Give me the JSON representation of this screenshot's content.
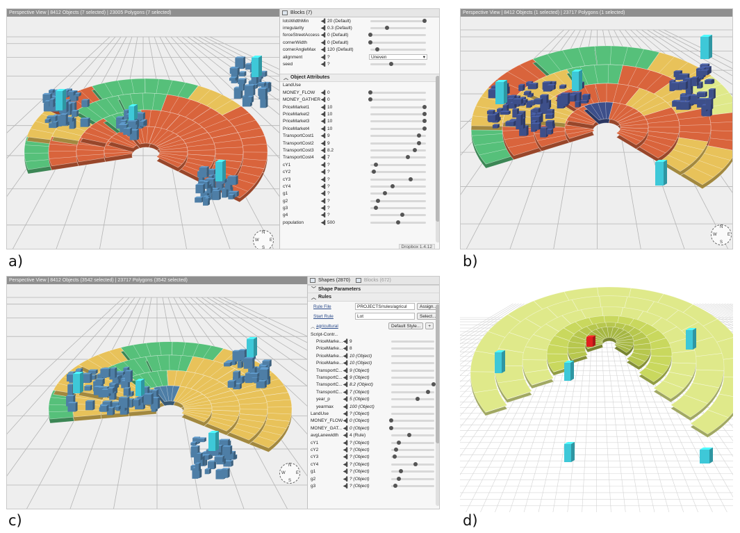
{
  "captions": {
    "a": "a)",
    "b": "b)",
    "c": "c)",
    "d": "d)"
  },
  "panel_a": {
    "viewport_title": "Perspective View  |  8412 Objects  (7 selected)  |  23005 Polygons  (7 selected)",
    "tab_label": "Blocks (7)",
    "top_rows": [
      {
        "name": "lotsWidthMin",
        "value": "20 (Default)",
        "slider": 0.98
      },
      {
        "name": "irregularity",
        "value": "0.3 (Default)",
        "slider": 0.3
      },
      {
        "name": "forceStreetAccess",
        "value": "0 (Default)",
        "slider": 0.0
      },
      {
        "name": "cornerWidth",
        "value": "0 (Default)",
        "slider": 0.0
      },
      {
        "name": "cornerAngleMax",
        "value": "120 (Default)",
        "slider": 0.12
      }
    ],
    "alignment": {
      "name": "alignment",
      "value": "?",
      "option": "Uneven",
      "arrow": "▾"
    },
    "seed": {
      "name": "seed",
      "value": "?",
      "slider": 0.38
    },
    "section_title": "Object Attributes",
    "attr_rows": [
      {
        "name": "LandUse",
        "value": "",
        "slider": null
      },
      {
        "name": "MONEY_FLOW",
        "value": "0",
        "slider": 0.0
      },
      {
        "name": "MONEY_GATHER",
        "value": "0",
        "slider": 0.0
      },
      {
        "name": "PriceMarket1",
        "value": "10",
        "slider": 0.98
      },
      {
        "name": "PriceMarket2",
        "value": "10",
        "slider": 0.98
      },
      {
        "name": "PriceMarket3",
        "value": "10",
        "slider": 0.98
      },
      {
        "name": "PriceMarket4",
        "value": "10",
        "slider": 0.98
      },
      {
        "name": "TransportCost1",
        "value": "9",
        "slider": 0.88
      },
      {
        "name": "TransportCost2",
        "value": "9",
        "slider": 0.88
      },
      {
        "name": "TransportCost3",
        "value": "8.2",
        "slider": 0.8
      },
      {
        "name": "TransportCost4",
        "value": "7",
        "slider": 0.68
      },
      {
        "name": "cY1",
        "value": "?",
        "slider": 0.1
      },
      {
        "name": "cY2",
        "value": "?",
        "slider": 0.06
      },
      {
        "name": "cY3",
        "value": "?",
        "slider": 0.72
      },
      {
        "name": "cY4",
        "value": "?",
        "slider": 0.4
      },
      {
        "name": "g1",
        "value": "?",
        "slider": 0.26
      },
      {
        "name": "g2",
        "value": "?",
        "slider": 0.14
      },
      {
        "name": "g3",
        "value": "?",
        "slider": 0.1
      },
      {
        "name": "g4",
        "value": "?",
        "slider": 0.58
      },
      {
        "name": "population",
        "value": "500",
        "slider": 0.5
      }
    ],
    "status_tag": "Dropbox 1.4.12"
  },
  "panel_b": {
    "viewport_title": "Perspective View  |  8412 Objects  (1 selected)  |  23717 Polygons  (1 selected)"
  },
  "panel_c": {
    "viewport_title": "Perspective View  |  8412 Objects  (3542 selected)  |  23717 Polygons  (3542 selected)",
    "tab_shapes": "Shapes (2870)",
    "tab_blocks": "Blocks (672)",
    "shape_params": "Shape Parameters",
    "rules_title": "Rules",
    "rule_file_label": "Rule File",
    "rule_file_value": "PROJECTS/rules/agricul",
    "assign_label": "Assign...",
    "start_rule_label": "Start Rule",
    "start_rule_value": "Lot",
    "select_label": "Select...",
    "group_name": "agricultural",
    "default_style_label": "Default Style...",
    "plus_label": "+",
    "script_label": "Script-Contr...",
    "script_rows": [
      {
        "name": "PriceMarke...",
        "value": "9",
        "slider": null,
        "italic": false
      },
      {
        "name": "PriceMarke...",
        "value": "8",
        "slider": null,
        "italic": false
      },
      {
        "name": "PriceMarke...",
        "value": "10 (Object)",
        "slider": null,
        "italic": true
      },
      {
        "name": "PriceMarke...",
        "value": "10 (Object)",
        "slider": null,
        "italic": true
      },
      {
        "name": "TransportC...",
        "value": "9 (Object)",
        "slider": null,
        "italic": true
      },
      {
        "name": "TransportC...",
        "value": "9 (Object)",
        "slider": null,
        "italic": true
      },
      {
        "name": "TransportC...",
        "value": "8.2 (Object)",
        "slider": 0.98,
        "italic": true
      },
      {
        "name": "TransportC...",
        "value": "7 (Object)",
        "slider": 0.86,
        "italic": true
      },
      {
        "name": "year_p",
        "value": "5 (Object)",
        "slider": 0.62,
        "italic": true
      },
      {
        "name": "yearmax",
        "value": "100 (Object)",
        "slider": null,
        "italic": true
      }
    ],
    "attr_rows": [
      {
        "name": "LandUse",
        "value": "? (Object)",
        "slider": null,
        "italic": true
      },
      {
        "name": "MONEY_FLOW",
        "value": "0 (Object)",
        "slider": 0.0,
        "italic": true
      },
      {
        "name": "MONEY_GAT...",
        "value": "0 (Object)",
        "slider": 0.0,
        "italic": true
      },
      {
        "name": "avgLanewidth",
        "value": "4 (Rule)",
        "slider": 0.42,
        "italic": false
      },
      {
        "name": "cY1",
        "value": "? (Object)",
        "slider": 0.18,
        "italic": true
      },
      {
        "name": "cY2",
        "value": "? (Object)",
        "slider": 0.12,
        "italic": true
      },
      {
        "name": "cY3",
        "value": "? (Object)",
        "slider": 0.08,
        "italic": true
      },
      {
        "name": "cY4",
        "value": "? (Object)",
        "slider": 0.56,
        "italic": true
      },
      {
        "name": "g1",
        "value": "? (Object)",
        "slider": 0.22,
        "italic": true
      },
      {
        "name": "g2",
        "value": "? (Object)",
        "slider": 0.18,
        "italic": true
      },
      {
        "name": "g3",
        "value": "? (Object)",
        "slider": 0.1,
        "italic": true
      }
    ]
  },
  "compass": {
    "n": "N",
    "s": "S",
    "e": "E",
    "w": "W"
  },
  "colors": {
    "orange": "#d9643c",
    "blue": "#4e7ea6",
    "navy": "#3d4f8a",
    "green": "#56c07a",
    "yellow": "#e8c25a",
    "cyan": "#3ec8d8",
    "lime": "#dfe98a",
    "olive": "#9aa83c",
    "red": "#e02020"
  }
}
